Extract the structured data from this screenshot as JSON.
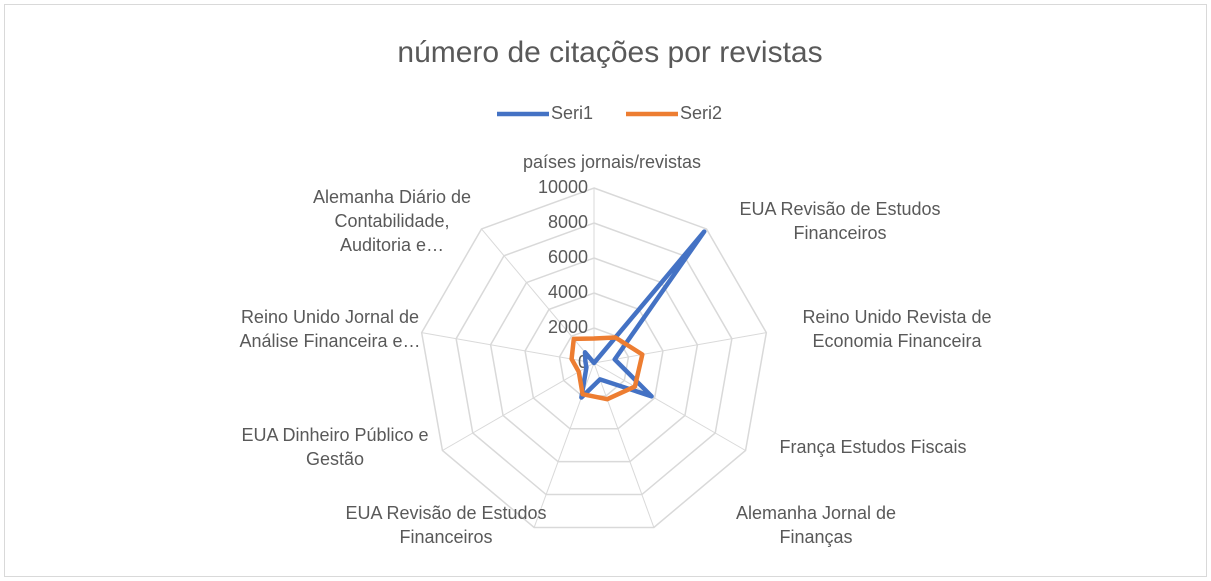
{
  "chart_data": {
    "type": "radar",
    "title": "número de citações por revistas",
    "categories": [
      "países  jornais/revistas",
      "EUA Revisão de Estudos Financeiros",
      "Reino Unido Revista de Economia Financeira",
      "França  Estudos Fiscais",
      "Alemanha  Jornal de Finanças",
      "EUA Revisão de Estudos Financeiros",
      "EUA Dinheiro Público e Gestão",
      "Reino Unido Jornal de Análise Financeira e…",
      "Alemanha  Diário de Contabilidade, Auditoria e…"
    ],
    "series": [
      {
        "name": "Seri1",
        "color": "#4472c4",
        "values": [
          0,
          9800,
          1200,
          3800,
          1000,
          2100,
          500,
          500,
          800
        ]
      },
      {
        "name": "Seri2",
        "color": "#ed7d31",
        "values": [
          1400,
          1900,
          2800,
          2700,
          2200,
          1900,
          1000,
          1300,
          1800
        ]
      }
    ],
    "ylim": [
      0,
      10000
    ],
    "yticks": [
      0,
      2000,
      4000,
      6000,
      8000,
      10000
    ],
    "grid": true,
    "legend": "top"
  }
}
